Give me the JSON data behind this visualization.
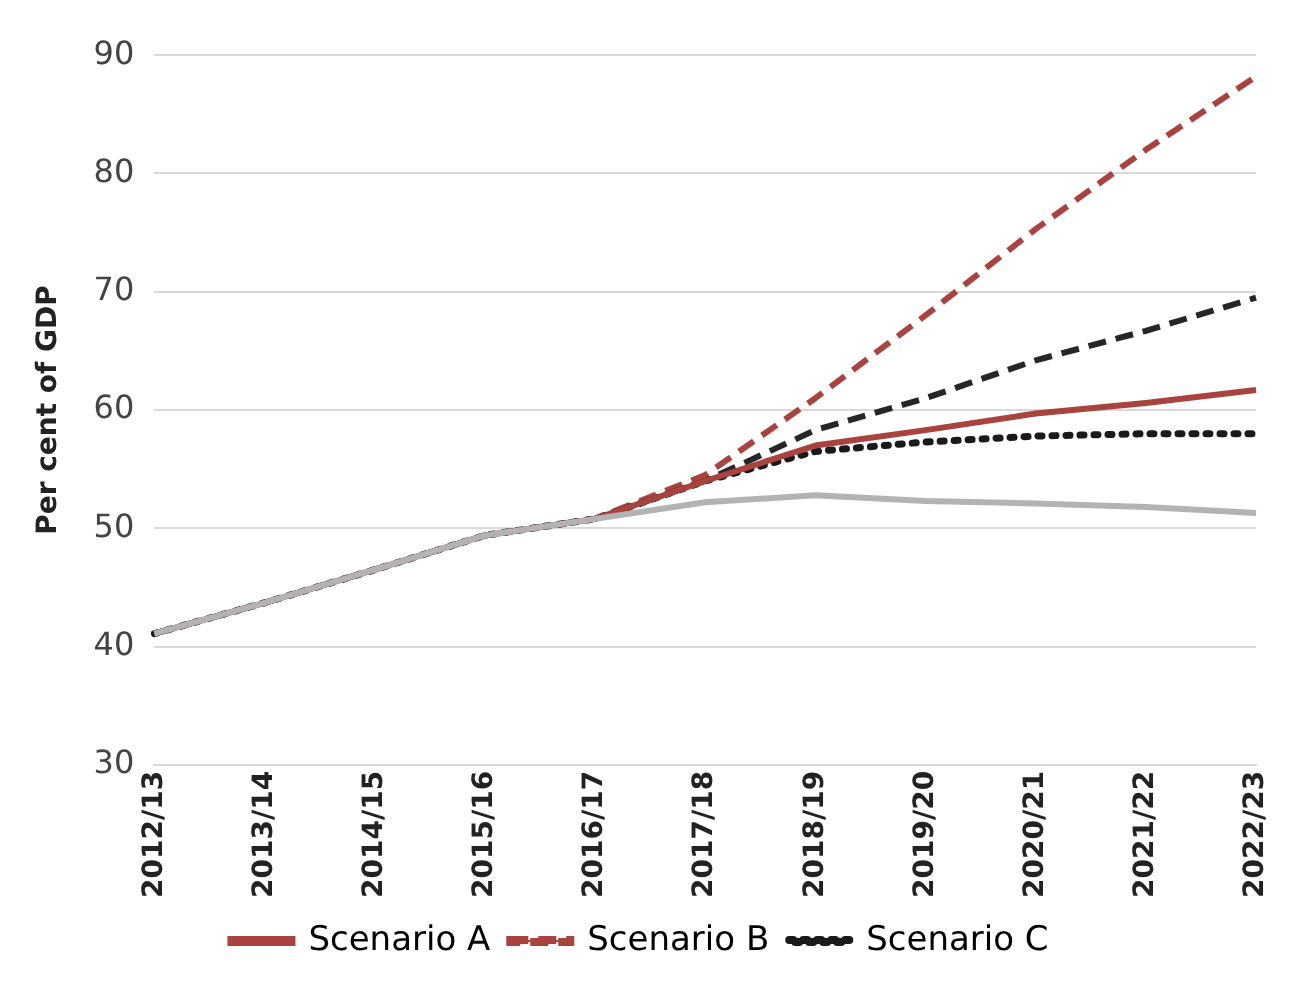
{
  "chart_data": {
    "type": "line",
    "ylabel": "Per cent of GDP",
    "categories": [
      "2012/13",
      "2013/14",
      "2014/15",
      "2015/16",
      "2016/17",
      "2017/18",
      "2018/19",
      "2019/20",
      "2020/21",
      "2021/22",
      "2022/23"
    ],
    "series": [
      {
        "color": "#b3b3b3",
        "line_style": "solid",
        "values": [
          41.1,
          43.7,
          46.5,
          49.4,
          50.8,
          52.2,
          52.8,
          52.3,
          52.1,
          51.8,
          51.3
        ]
      },
      {
        "name": "Scenario A",
        "color": "#a8433e",
        "line_style": "solid",
        "values": [
          41.1,
          43.7,
          46.5,
          49.4,
          50.8,
          54,
          57,
          58.3,
          59.7,
          60.6,
          61.7
        ]
      },
      {
        "color": "#262626",
        "line_style": "dashed",
        "values": [
          41.1,
          43.7,
          46.5,
          49.4,
          50.8,
          54,
          58.3,
          61,
          64.2,
          66.7,
          69.5
        ]
      },
      {
        "name": "Scenario B",
        "color": "#a8433e",
        "line_style": "dashed",
        "values": [
          41.1,
          43.7,
          46.5,
          49.4,
          50.8,
          54.5,
          61,
          68,
          75.3,
          82,
          88.2
        ]
      },
      {
        "name": "Scenario C",
        "color": "#1a1a1a",
        "line_style": "dotted",
        "values": [
          41.1,
          43.7,
          46.5,
          49.4,
          50.8,
          54,
          56.5,
          57.3,
          57.8,
          58,
          58
        ]
      }
    ],
    "ylim": [
      30,
      90
    ],
    "yticks": [
      30,
      40,
      50,
      60,
      70,
      80,
      90
    ],
    "grid": "y",
    "legend": "bottom",
    "marker": "none"
  }
}
